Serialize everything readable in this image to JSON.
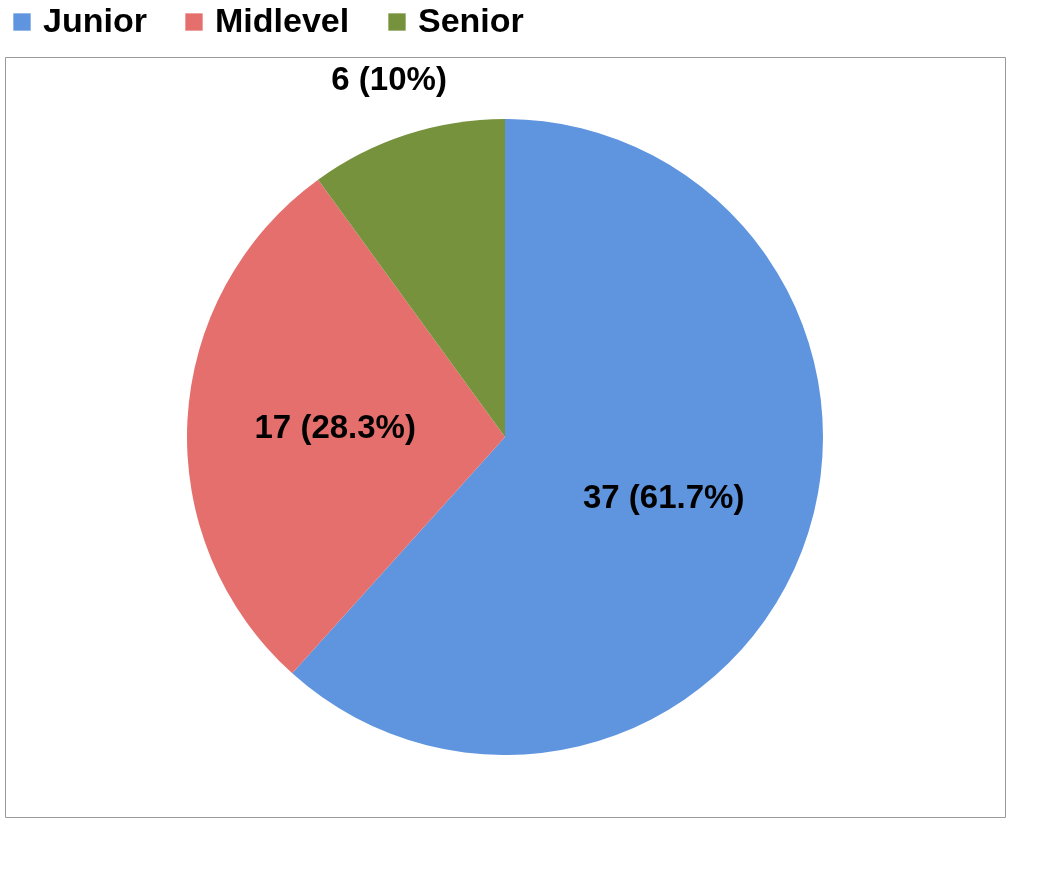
{
  "chart_data": {
    "type": "pie",
    "categories": [
      "Junior",
      "Midlevel",
      "Senior"
    ],
    "values": [
      37,
      17,
      6
    ],
    "colors": [
      "#5f94df",
      "#e46f6d",
      "#76923c"
    ],
    "value_labels": [
      "37 (61.7%)",
      "17 (28.3%)",
      "6 (10%)"
    ],
    "legend": "top"
  }
}
